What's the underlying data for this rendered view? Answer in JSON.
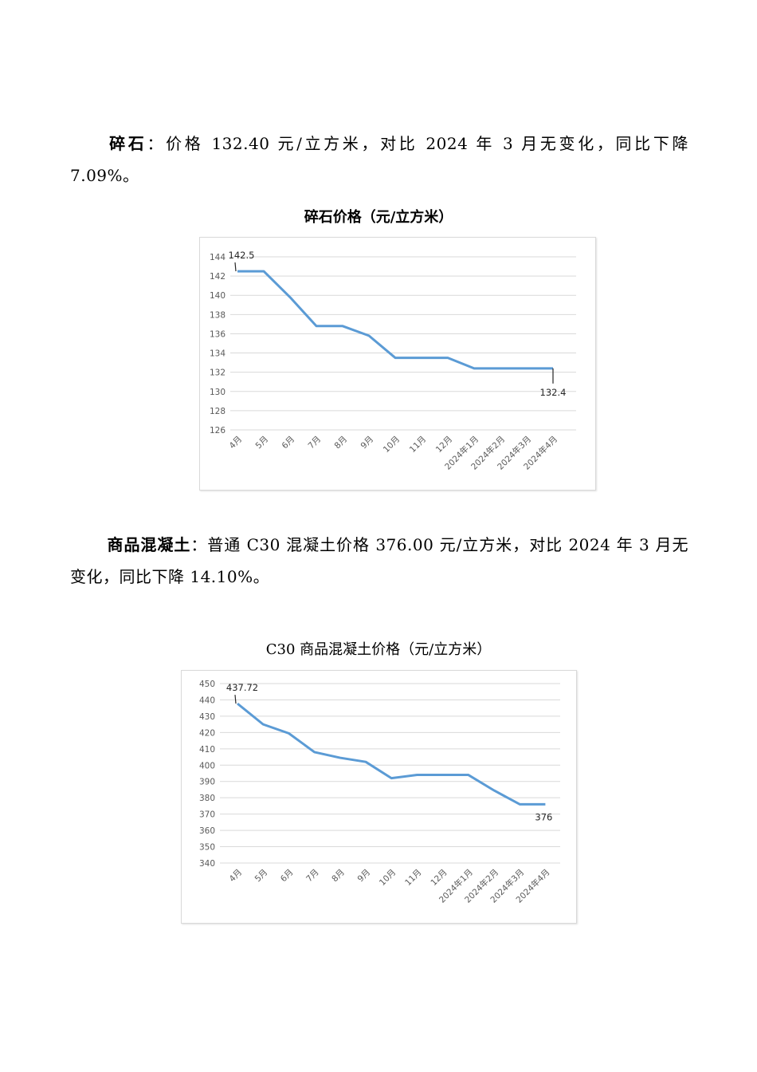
{
  "gravel": {
    "label": "碎石",
    "text": "：价格 132.40 元/立方米，对比 2024 年 3 月无变化，同比下降 7.09%。"
  },
  "concrete": {
    "label": "商品混凝土",
    "text": "：普通 C30 混凝土价格 376.00 元/立方米，对比 2024 年 3 月无变化，同比下降 14.10%。"
  },
  "chart_data": [
    {
      "type": "line",
      "title": "碎石价格（元/立方米）",
      "categories": [
        "4月",
        "5月",
        "6月",
        "7月",
        "8月",
        "9月",
        "10月",
        "11月",
        "12月",
        "2024年1月",
        "2024年2月",
        "2024年3月",
        "2024年4月"
      ],
      "series": [
        {
          "values": [
            142.5,
            142.5,
            139.8,
            136.8,
            136.8,
            135.8,
            133.5,
            133.5,
            133.5,
            132.4,
            132.4,
            132.4,
            132.4
          ]
        }
      ],
      "ylim": [
        126,
        144
      ],
      "yticks": [
        126,
        128,
        130,
        132,
        134,
        136,
        138,
        140,
        142,
        144
      ],
      "data_labels": [
        {
          "index": 0,
          "text": "142.5"
        },
        {
          "index": 12,
          "text": "132.4"
        }
      ],
      "grid": true,
      "line_color": "#5b9bd5"
    },
    {
      "type": "line",
      "title": "C30 商品混凝土价格（元/立方米）",
      "categories": [
        "4月",
        "5月",
        "6月",
        "7月",
        "8月",
        "9月",
        "10月",
        "11月",
        "12月",
        "2024年1月",
        "2024年2月",
        "2024年3月",
        "2024年4月"
      ],
      "series": [
        {
          "values": [
            437.72,
            425,
            419.5,
            408,
            404.5,
            402,
            392,
            394,
            394,
            394,
            384.5,
            376,
            376
          ]
        }
      ],
      "ylim": [
        340,
        450
      ],
      "yticks": [
        340,
        350,
        360,
        370,
        380,
        390,
        400,
        410,
        420,
        430,
        440,
        450
      ],
      "data_labels": [
        {
          "index": 0,
          "text": "437.72"
        },
        {
          "index": 12,
          "text": "376"
        }
      ],
      "grid": true,
      "line_color": "#5b9bd5"
    }
  ]
}
